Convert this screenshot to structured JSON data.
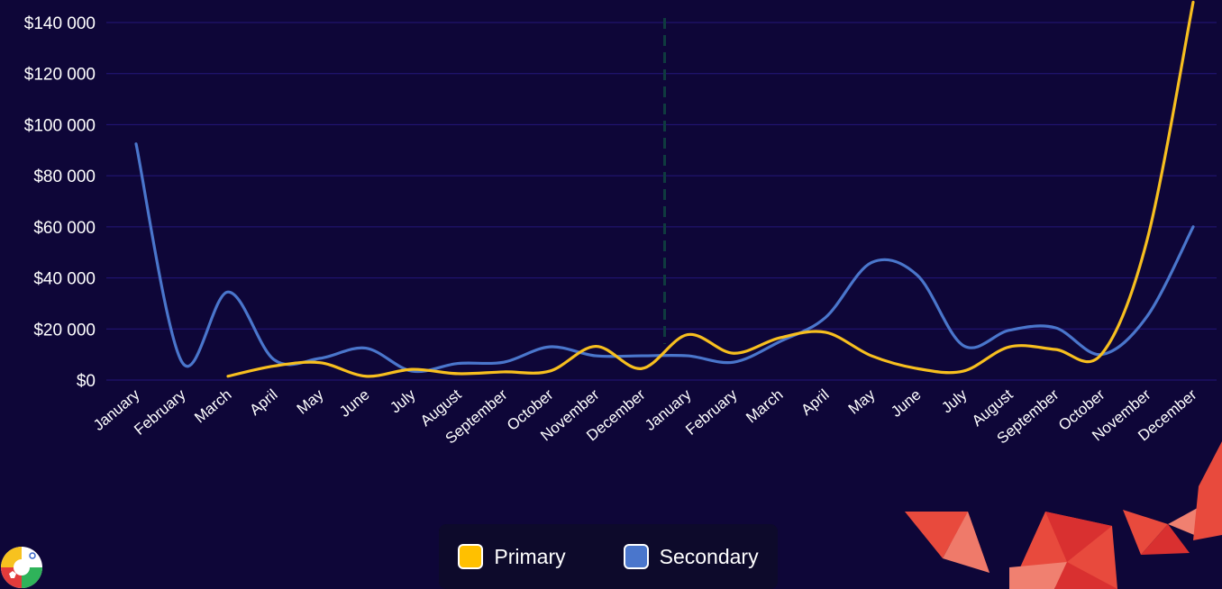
{
  "chart_data": {
    "type": "line",
    "categories": [
      "January",
      "February",
      "March",
      "April",
      "May",
      "June",
      "July",
      "August",
      "September",
      "October",
      "November",
      "December",
      "January",
      "February",
      "March",
      "April",
      "May",
      "June",
      "July",
      "August",
      "September",
      "October",
      "November",
      "December"
    ],
    "series": [
      {
        "name": "Primary",
        "color": "#f7bf1f",
        "values": [
          null,
          null,
          1500,
          5500,
          6800,
          1500,
          4200,
          2500,
          3200,
          3500,
          13200,
          4500,
          17800,
          10500,
          16500,
          18700,
          9500,
          4500,
          3500,
          13000,
          12000,
          10000,
          55000,
          148000
        ]
      },
      {
        "name": "Secondary",
        "color": "#4a76cc",
        "values": [
          92500,
          7000,
          34500,
          8000,
          8500,
          12500,
          3500,
          6500,
          7000,
          13000,
          9500,
          9500,
          9500,
          7000,
          15000,
          24500,
          46000,
          41000,
          13500,
          19500,
          20500,
          10000,
          25000,
          60000
        ]
      }
    ],
    "ylim": [
      0,
      140000
    ],
    "yticks": [
      0,
      20000,
      40000,
      60000,
      80000,
      100000,
      120000,
      140000
    ],
    "ytick_labels": [
      "$0",
      "$20 000",
      "$40 000",
      "$60 000",
      "$80 000",
      "$100 000",
      "$120 000",
      "$140 000"
    ],
    "divider_after_index": 11,
    "grid": true,
    "legend_position": "bottom-center"
  },
  "legend": {
    "primary_label": "Primary",
    "secondary_label": "Secondary",
    "primary_color": "#ffc000",
    "secondary_color": "#4a76cc"
  },
  "colors": {
    "background": "#0e0638",
    "grid": "#24167a",
    "divider": "#0f3b3f"
  },
  "icons": [
    "brand-logo-icon"
  ]
}
